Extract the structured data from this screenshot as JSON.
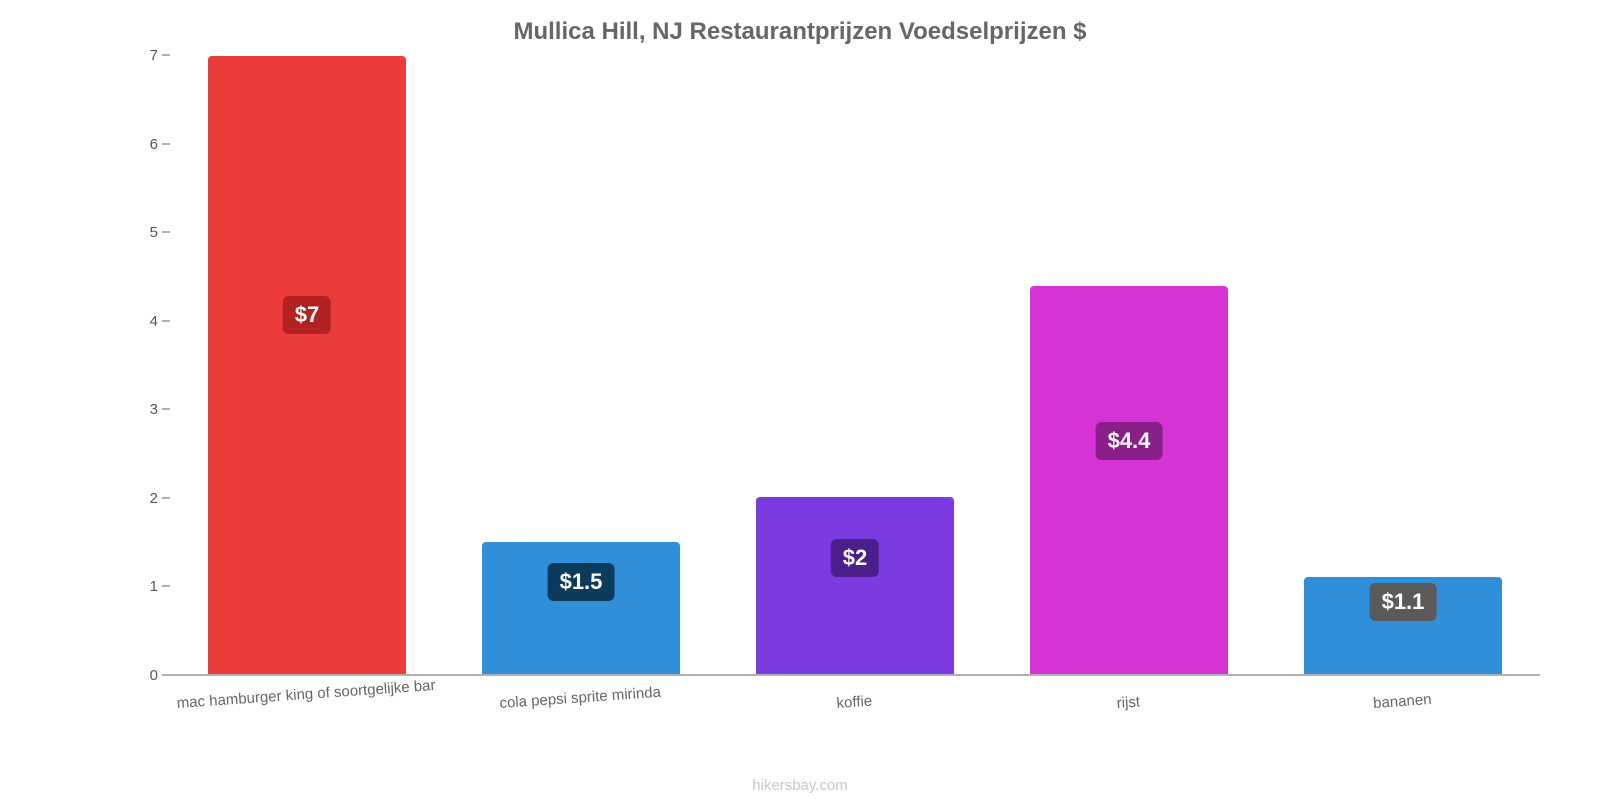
{
  "chart": {
    "type": "bar",
    "title": "Mullica Hill, NJ Restaurantprijzen Voedselprijzen $",
    "title_fontsize": 24,
    "title_color": "#666666",
    "background_color": "#ffffff",
    "axis_color": "#b0b0b0",
    "xlabel_fontsize": 15,
    "xlabel_color": "#666666",
    "ylabel_fontsize": 15,
    "ylabel_color": "#555555",
    "ylim": [
      0,
      7
    ],
    "yticks": [
      0,
      1,
      2,
      3,
      4,
      5,
      6,
      7
    ],
    "bar_width": 0.72,
    "categories": [
      "mac hamburger king of soortgelijke bar",
      "cola pepsi sprite mirinda",
      "koffie",
      "rijst",
      "bananen"
    ],
    "values": [
      7,
      1.5,
      2,
      4.4,
      1.1
    ],
    "value_labels": [
      "$7",
      "$1.5",
      "$2",
      "$4.4",
      "$1.1"
    ],
    "bar_colors": [
      "#eb3b3b",
      "#2f8fd8",
      "#7b3be0",
      "#d633d6",
      "#2f8fd8"
    ],
    "badge_colors": [
      "#b22222",
      "#0d3b5c",
      "#4b1f8a",
      "#8a1f8a",
      "#5a5a5a"
    ],
    "badge_fontsize": 22,
    "badge_text_color": "#ffffff",
    "watermark": "hikersbay.com",
    "watermark_color": "#c8c8c8",
    "watermark_fontsize": 15
  }
}
